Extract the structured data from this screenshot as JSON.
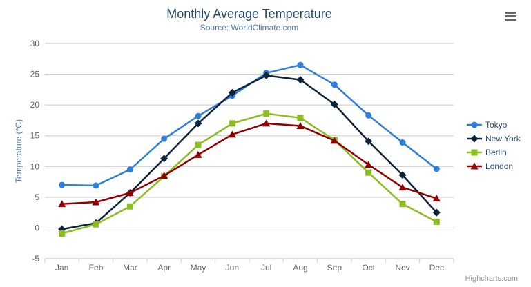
{
  "chart_data": {
    "type": "line",
    "title": "Monthly Average Temperature",
    "subtitle": "Source: WorldClimate.com",
    "xlabel": "",
    "ylabel": "Temperature (°C)",
    "ylim": [
      -5,
      30
    ],
    "ytick_step": 5,
    "grid": true,
    "legend_position": "middle-right",
    "categories": [
      "Jan",
      "Feb",
      "Mar",
      "Apr",
      "May",
      "Jun",
      "Jul",
      "Aug",
      "Sep",
      "Oct",
      "Nov",
      "Dec"
    ],
    "series": [
      {
        "name": "Tokyo",
        "color": "#2f7ed8",
        "marker": "circle",
        "values": [
          7.0,
          6.9,
          9.5,
          14.5,
          18.2,
          21.5,
          25.2,
          26.5,
          23.3,
          18.3,
          13.9,
          9.6
        ]
      },
      {
        "name": "New York",
        "color": "#0d233a",
        "marker": "diamond",
        "values": [
          -0.2,
          0.8,
          5.7,
          11.3,
          17.0,
          22.0,
          24.8,
          24.1,
          20.1,
          14.1,
          8.6,
          2.5
        ]
      },
      {
        "name": "Berlin",
        "color": "#8bbc21",
        "marker": "square",
        "values": [
          -0.9,
          0.6,
          3.5,
          8.4,
          13.5,
          17.0,
          18.6,
          17.9,
          14.3,
          9.0,
          3.9,
          1.0
        ]
      },
      {
        "name": "London",
        "color": "#910000",
        "marker": "triangle",
        "values": [
          3.9,
          4.2,
          5.7,
          8.5,
          11.9,
          15.2,
          17.0,
          16.6,
          14.2,
          10.3,
          6.6,
          4.8
        ]
      }
    ]
  },
  "credits": "Highcharts.com",
  "colors": {
    "title": "#274b6d",
    "subtitle": "#4d759e",
    "axis_title": "#4d759e",
    "tick_label": "#606060",
    "grid": "#c9c9c9",
    "axis_line": "#c0d0e0",
    "legend_text": "#274b6d",
    "credits": "#909090"
  }
}
